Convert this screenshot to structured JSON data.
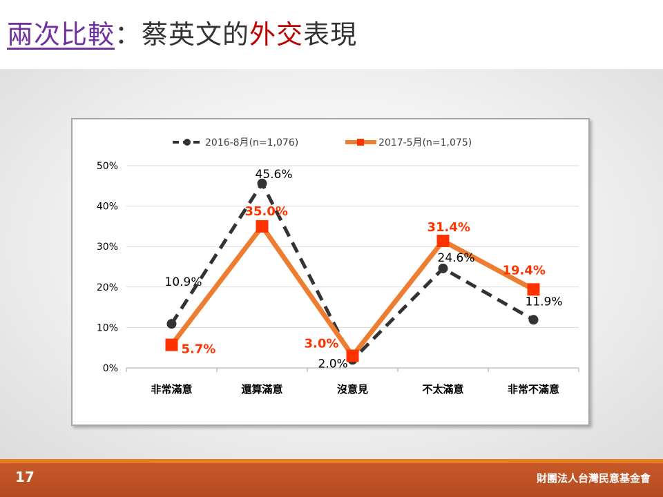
{
  "slide": {
    "title_part1": "兩次比較",
    "title_part2": "：",
    "title_part3": "蔡英文的",
    "title_part4": "外交",
    "title_part5": "表現",
    "page_number": "17",
    "organization": "財團法人台灣民意基金會"
  },
  "chart_data": {
    "type": "line",
    "categories": [
      "非常滿意",
      "還算滿意",
      "沒意見",
      "不太滿意",
      "非常不滿意"
    ],
    "y_ticks": [
      "0%",
      "10%",
      "20%",
      "30%",
      "40%",
      "50%"
    ],
    "ylim": [
      0,
      50
    ],
    "grid": true,
    "legend_position": "top",
    "series": [
      {
        "name": "2016-8月(n=1,076)",
        "values": [
          10.9,
          45.6,
          2.0,
          24.6,
          11.9
        ],
        "labels": [
          "10.9%",
          "45.6%",
          "2.0%",
          "24.6%",
          "11.9%"
        ],
        "color": "#333333",
        "style": "dashed-circle"
      },
      {
        "name": "2017-5月(n=1,075)",
        "values": [
          5.7,
          35.0,
          3.0,
          31.4,
          19.4
        ],
        "labels": [
          "5.7%",
          "35.0%",
          "3.0%",
          "31.4%",
          "19.4%"
        ],
        "color": "#ed7d31",
        "marker_color": "#ff3300",
        "label_color": "#ff3300",
        "style": "solid-square"
      }
    ]
  }
}
